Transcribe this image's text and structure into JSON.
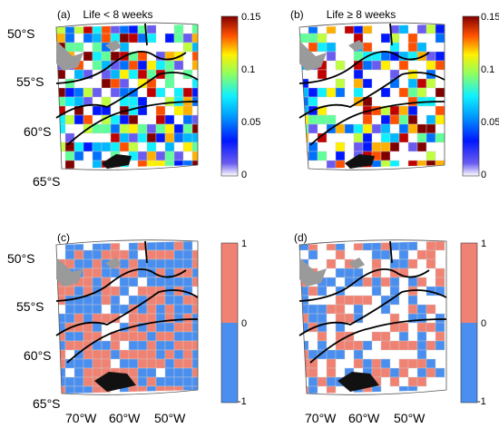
{
  "colors": {
    "land": "#9a9a9a",
    "front": "#000000",
    "pos": "#f08273",
    "neg": "#4a8fef",
    "grid": "#cccccc"
  },
  "panels": [
    {
      "label": "(a)",
      "title": "Life < 8 weeks",
      "lat_labels": [
        "50°S",
        "55°S",
        "60°S",
        "65°S"
      ],
      "lon_labels": [],
      "colorbar": {
        "type": "continuous",
        "ticks": [
          "0.15",
          "0.1",
          "0.05",
          "0"
        ],
        "range": [
          0,
          0.15
        ]
      }
    },
    {
      "label": "(b)",
      "title": "Life ≥ 8 weeks",
      "lat_labels": [],
      "lon_labels": [],
      "colorbar": {
        "type": "continuous",
        "ticks": [
          "0.15",
          "0.1",
          "0.05",
          "0"
        ],
        "range": [
          0,
          0.15
        ]
      }
    },
    {
      "label": "(c)",
      "title": "",
      "lat_labels": [
        "50°S",
        "55°S",
        "60°S",
        "65°S"
      ],
      "lon_labels": [
        "70°W",
        "60°W",
        "50°W"
      ],
      "colorbar": {
        "type": "diverging",
        "ticks": [
          "1",
          "0",
          "-1"
        ],
        "range": [
          -1,
          1
        ]
      }
    },
    {
      "label": "(d)",
      "title": "",
      "lat_labels": [],
      "lon_labels": [
        "70°W",
        "60°W",
        "50°W"
      ],
      "colorbar": {
        "type": "diverging",
        "ticks": [
          "1",
          "0",
          "-1"
        ],
        "range": [
          -1,
          1
        ]
      }
    }
  ]
}
